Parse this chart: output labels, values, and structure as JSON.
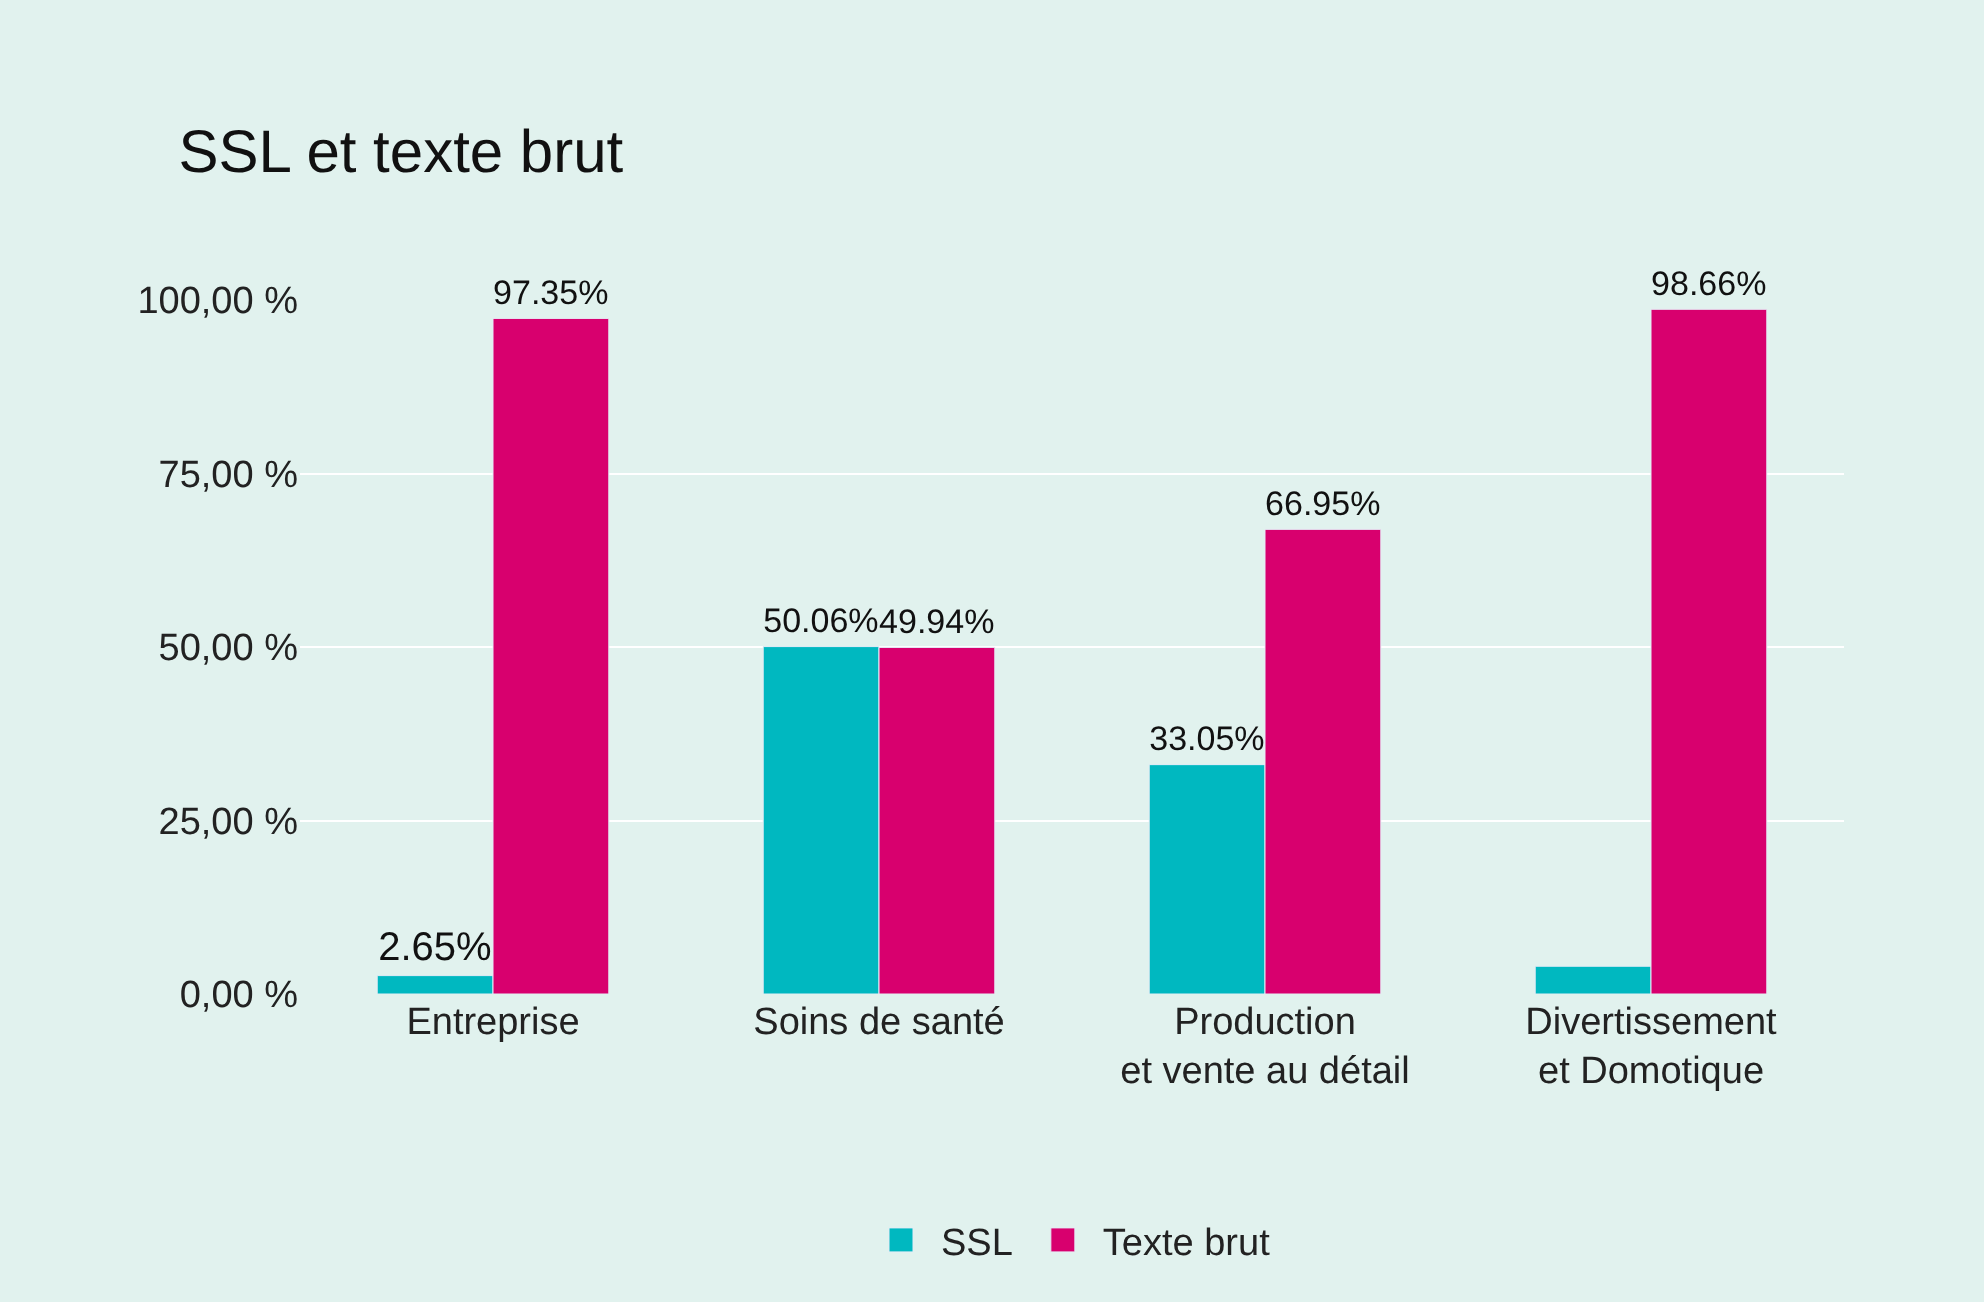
{
  "chart_data": {
    "type": "bar",
    "title": "SSL et texte brut",
    "categories": [
      "Entreprise",
      "Soins de santé",
      "Production\net vente au détail",
      "Divertissement\net Domotique"
    ],
    "series": [
      {
        "name": "SSL",
        "color": "#00b8c0",
        "values": [
          2.65,
          50.06,
          33.05,
          4
        ],
        "value_labels": [
          "2.65%",
          "50.06%",
          "33.05%",
          null
        ]
      },
      {
        "name": "Texte brut",
        "color": "#d8006e",
        "values": [
          97.35,
          49.94,
          66.95,
          98.66
        ],
        "value_labels": [
          "97.35%",
          "49.94%",
          "66.95%",
          "98.66%"
        ]
      }
    ],
    "ylim": [
      0,
      100
    ],
    "yticks": [
      {
        "value": 0,
        "label": "0,00 %"
      },
      {
        "value": 25,
        "label": "25,00 %"
      },
      {
        "value": 50,
        "label": "50,00 %"
      },
      {
        "value": 75,
        "label": "75,00 %"
      },
      {
        "value": 100,
        "label": "100,00 %"
      }
    ],
    "grid": "y",
    "legend": "bottom"
  }
}
